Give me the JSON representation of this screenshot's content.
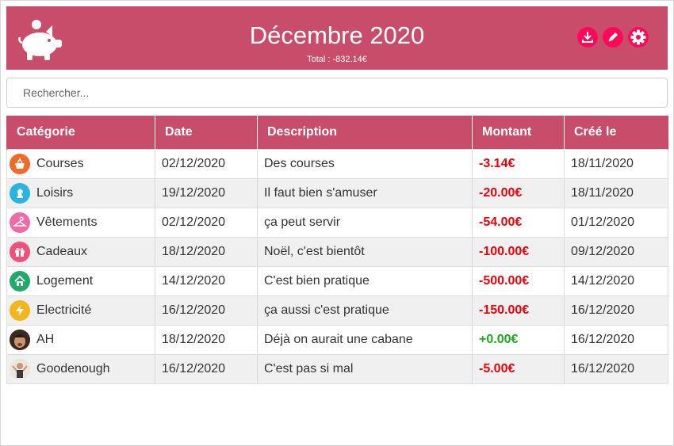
{
  "header": {
    "title": "Décembre 2020",
    "total": "Total : -832.14€",
    "logo_icon": "piggy-bank-icon",
    "actions": [
      {
        "icon": "download-icon"
      },
      {
        "icon": "pencil-icon"
      },
      {
        "icon": "gear-icon"
      }
    ],
    "colors": {
      "bar": "#c84d6b",
      "action": "#ff0a5a"
    }
  },
  "search": {
    "placeholder": "Rechercher..."
  },
  "table": {
    "columns": [
      "Catégorie",
      "Date",
      "Description",
      "Montant",
      "Créé le"
    ],
    "rows": [
      {
        "category": "Courses",
        "icon": "shopping-basket-icon",
        "icon_color": "#f26a2a",
        "date": "02/12/2020",
        "description": "Des courses",
        "amount": "-3.14€",
        "created": "18/11/2020"
      },
      {
        "category": "Loisirs",
        "icon": "chess-knight-icon",
        "icon_color": "#2cb4e0",
        "date": "19/12/2020",
        "description": "Il faut bien s'amuser",
        "amount": "-20.00€",
        "created": "18/11/2020"
      },
      {
        "category": "Vêtements",
        "icon": "hanger-icon",
        "icon_color": "#f06aa8",
        "date": "02/12/2020",
        "description": "ça peut servir",
        "amount": "-54.00€",
        "created": "01/12/2020"
      },
      {
        "category": "Cadeaux",
        "icon": "gift-icon",
        "icon_color": "#f0507a",
        "date": "18/12/2020",
        "description": "Noël, c'est bientôt",
        "amount": "-100.00€",
        "created": "09/12/2020"
      },
      {
        "category": "Logement",
        "icon": "house-icon",
        "icon_color": "#23a86b",
        "date": "14/12/2020",
        "description": "C'est bien pratique",
        "amount": "-500.00€",
        "created": "14/12/2020"
      },
      {
        "category": "Electricité",
        "icon": "lightning-icon",
        "icon_color": "#f2b71e",
        "date": "16/12/2020",
        "description": "ça aussi c'est pratique",
        "amount": "-150.00€",
        "created": "16/12/2020"
      },
      {
        "category": "AH",
        "icon": "avatar-photo-icon",
        "icon_color": "#6b4a32",
        "date": "18/12/2020",
        "description": "Déjà on aurait une cabane",
        "amount": "+0.00€",
        "created": "16/12/2020"
      },
      {
        "category": "Goodenough",
        "icon": "shrug-photo-icon",
        "icon_color": "#d8cfc4",
        "date": "16/12/2020",
        "description": "C'est pas si mal",
        "amount": "-5.00€",
        "created": "16/12/2020"
      }
    ]
  }
}
